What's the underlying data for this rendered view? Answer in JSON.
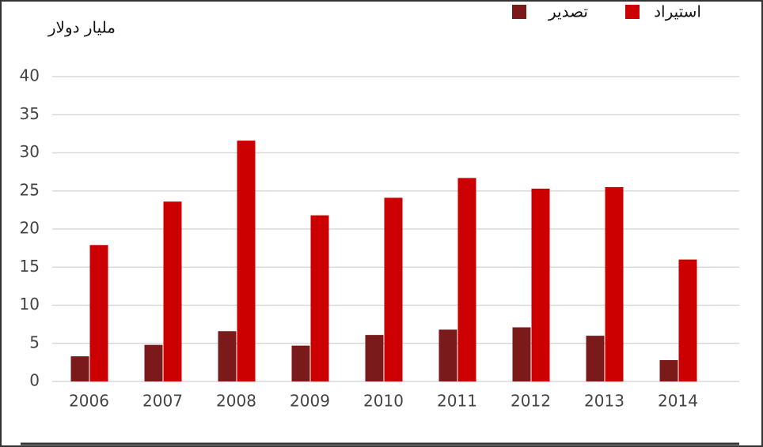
{
  "chart_data": {
    "type": "bar",
    "y_label": "ملیار دولار",
    "categories": [
      "2006",
      "2007",
      "2008",
      "2009",
      "2010",
      "2011",
      "2012",
      "2013",
      "2014"
    ],
    "series": [
      {
        "name": "تصدیر",
        "color": "#7b1a1a",
        "values": [
          3.3,
          4.8,
          6.6,
          4.7,
          6.1,
          6.8,
          7.1,
          6.0,
          2.8
        ]
      },
      {
        "name": "استیراد",
        "color": "#cc0000",
        "values": [
          17.9,
          23.6,
          31.6,
          21.8,
          24.1,
          26.7,
          25.3,
          25.5,
          16.0
        ]
      }
    ],
    "ylim": [
      0,
      40
    ],
    "yticks": [
      0,
      5,
      10,
      15,
      20,
      25,
      30,
      35,
      40
    ],
    "grid": true
  }
}
